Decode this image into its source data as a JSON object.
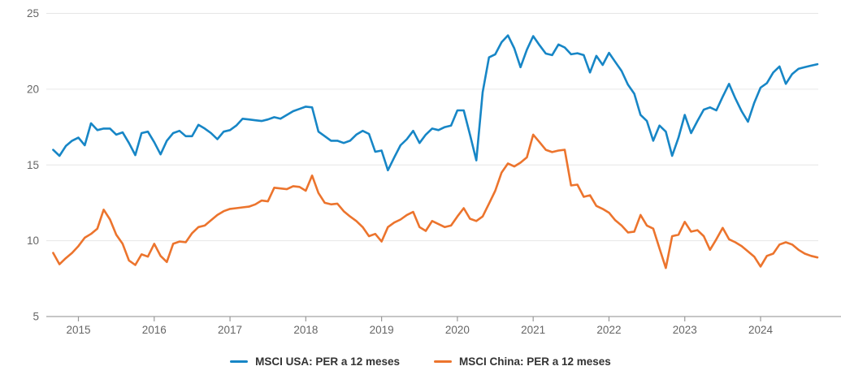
{
  "chart_data": {
    "type": "line",
    "title": "",
    "xlabel": "",
    "ylabel": "",
    "grid": "horizontal",
    "legend_position": "bottom-center",
    "style": {
      "grid_color": "#e6e6e6",
      "axis_line_color": "#b3b3b3",
      "tick_color": "#999999",
      "label_color": "#666666",
      "legend_text_color": "#333333",
      "background": "#ffffff"
    },
    "y_axis": {
      "ticks": [
        5,
        10,
        15,
        20,
        25
      ],
      "range": [
        5,
        25
      ]
    },
    "x_axis": {
      "ticks": [
        2015,
        2016,
        2017,
        2018,
        2019,
        2020,
        2021,
        2022,
        2023,
        2024
      ],
      "start": {
        "year": 2014,
        "month": 9
      },
      "interval": "monthly"
    },
    "series": [
      {
        "name": "MSCI USA: PER a 12 meses",
        "color": "#1786c6",
        "values": [
          16.0,
          15.6,
          16.25,
          16.6,
          16.8,
          16.3,
          17.75,
          17.3,
          17.4,
          17.4,
          17.0,
          17.15,
          16.45,
          15.65,
          17.1,
          17.2,
          16.5,
          15.7,
          16.6,
          17.1,
          17.25,
          16.9,
          16.9,
          17.65,
          17.4,
          17.1,
          16.7,
          17.2,
          17.3,
          17.6,
          18.05,
          18.0,
          17.95,
          17.9,
          18.0,
          18.15,
          18.05,
          18.3,
          18.55,
          18.7,
          18.85,
          18.8,
          17.2,
          16.9,
          16.6,
          16.6,
          16.45,
          16.6,
          17.0,
          17.25,
          17.05,
          15.87,
          15.95,
          14.65,
          15.5,
          16.3,
          16.7,
          17.25,
          16.45,
          17.0,
          17.4,
          17.3,
          17.5,
          17.6,
          18.6,
          18.6,
          17.0,
          15.3,
          19.8,
          22.1,
          22.3,
          23.1,
          23.55,
          22.7,
          21.45,
          22.6,
          23.5,
          22.9,
          22.35,
          22.25,
          22.95,
          22.75,
          22.3,
          22.37,
          22.25,
          21.1,
          22.2,
          21.6,
          22.4,
          21.8,
          21.2,
          20.3,
          19.7,
          18.3,
          17.9,
          16.6,
          17.6,
          17.2,
          15.6,
          16.8,
          18.3,
          17.1,
          17.9,
          18.65,
          18.8,
          18.6,
          19.5,
          20.35,
          19.4,
          18.55,
          17.85,
          19.1,
          20.1,
          20.4,
          21.1,
          21.5,
          20.35,
          21.0,
          21.35,
          21.45,
          21.55,
          21.65
        ]
      },
      {
        "name": "MSCI China: PER a 12 meses",
        "color": "#ec742d",
        "values": [
          9.2,
          8.45,
          8.85,
          9.2,
          9.65,
          10.2,
          10.45,
          10.8,
          12.05,
          11.4,
          10.4,
          9.8,
          8.7,
          8.4,
          9.1,
          8.95,
          9.8,
          9.0,
          8.6,
          9.8,
          9.95,
          9.9,
          10.5,
          10.9,
          11.0,
          11.35,
          11.7,
          11.95,
          12.1,
          12.15,
          12.2,
          12.25,
          12.4,
          12.65,
          12.6,
          13.5,
          13.45,
          13.4,
          13.6,
          13.55,
          13.3,
          14.3,
          13.15,
          12.5,
          12.4,
          12.45,
          11.95,
          11.6,
          11.3,
          10.9,
          10.3,
          10.45,
          9.95,
          10.9,
          11.2,
          11.4,
          11.7,
          11.9,
          10.9,
          10.65,
          11.3,
          11.1,
          10.9,
          11.0,
          11.6,
          12.15,
          11.45,
          11.3,
          11.6,
          12.45,
          13.3,
          14.5,
          15.1,
          14.9,
          15.15,
          15.5,
          17.0,
          16.5,
          16.0,
          15.85,
          15.95,
          16.0,
          13.65,
          13.7,
          12.9,
          13.0,
          12.3,
          12.1,
          11.85,
          11.35,
          11.0,
          10.55,
          10.6,
          11.7,
          11.0,
          10.8,
          9.5,
          8.2,
          10.3,
          10.4,
          11.25,
          10.6,
          10.7,
          10.3,
          9.4,
          10.1,
          10.85,
          10.1,
          9.9,
          9.65,
          9.3,
          8.95,
          8.3,
          9.0,
          9.15,
          9.75,
          9.9,
          9.75,
          9.4,
          9.15,
          9.0,
          8.9
        ]
      }
    ]
  },
  "legend": {
    "items": [
      {
        "label": "MSCI USA: PER a 12 meses"
      },
      {
        "label": "MSCI China: PER a 12 meses"
      }
    ]
  }
}
